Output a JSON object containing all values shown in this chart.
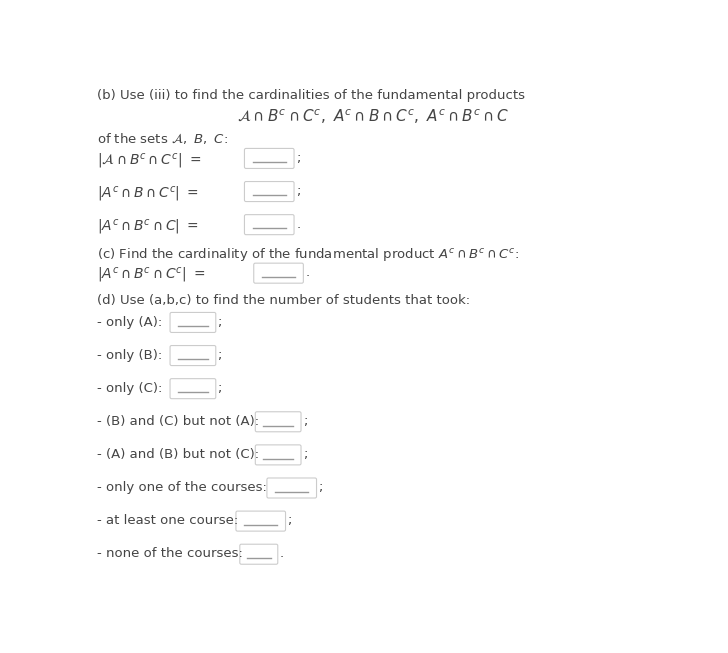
{
  "bg_color": "#ffffff",
  "text_color": "#444444",
  "box_edge_color": "#cccccc",
  "underline_color": "#999999",
  "title_b": "(b) Use (iii) to find the cardinalities of the fundamental products",
  "title_c": "(c) Find the cardinality of the fundamental product $A^c \\cap B^c \\cap C^c$:",
  "title_d": "(d) Use (a,b,c) to find the number of students that took:",
  "items_d": [
    {
      "label": "- only (A):",
      "suffix": ";"
    },
    {
      "label": "- only (B):",
      "suffix": ";"
    },
    {
      "label": "- only (C):",
      "suffix": ";"
    },
    {
      "label": "- (B) and (C) but not (A):",
      "suffix": ";"
    },
    {
      "label": "- (A) and (B) but not (C):",
      "suffix": ";"
    },
    {
      "label": "- only one of the courses:",
      "suffix": ";"
    },
    {
      "label": "- at least one course:",
      "suffix": ";"
    },
    {
      "label": "- none of the courses:",
      "suffix": "."
    }
  ],
  "figw": 7.28,
  "figh": 6.53,
  "dpi": 100
}
